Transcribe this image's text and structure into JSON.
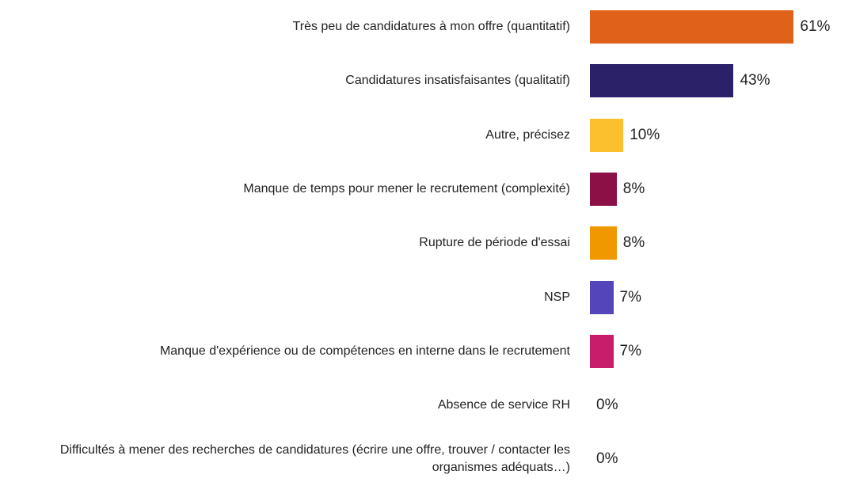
{
  "chart_data": {
    "type": "bar",
    "orientation": "horizontal",
    "categories": [
      "Très peu de candidatures à mon offre (quantitatif)",
      "Candidatures insatisfaisantes (qualitatif)",
      "Autre, précisez",
      "Manque de temps pour mener le recrutement (complexité)",
      "Rupture de période d'essai",
      "NSP",
      "Manque d'expérience ou de compétences en interne dans le recrutement",
      "Absence de service RH",
      "Difficultés à mener des recherches de candidatures (écrire une offre, trouver / contacter les organismes adéquats…)"
    ],
    "values": [
      61,
      43,
      10,
      8,
      8,
      7,
      7,
      0,
      0
    ],
    "value_labels": [
      "61%",
      "43%",
      "10%",
      "8%",
      "8%",
      "7%",
      "7%",
      "0%",
      "0%"
    ],
    "colors": [
      "#e0621a",
      "#2a2169",
      "#fcc02e",
      "#8c0f45",
      "#f09800",
      "#5445bb",
      "#c81d6b",
      "#e0621a",
      "#2a2169"
    ]
  }
}
